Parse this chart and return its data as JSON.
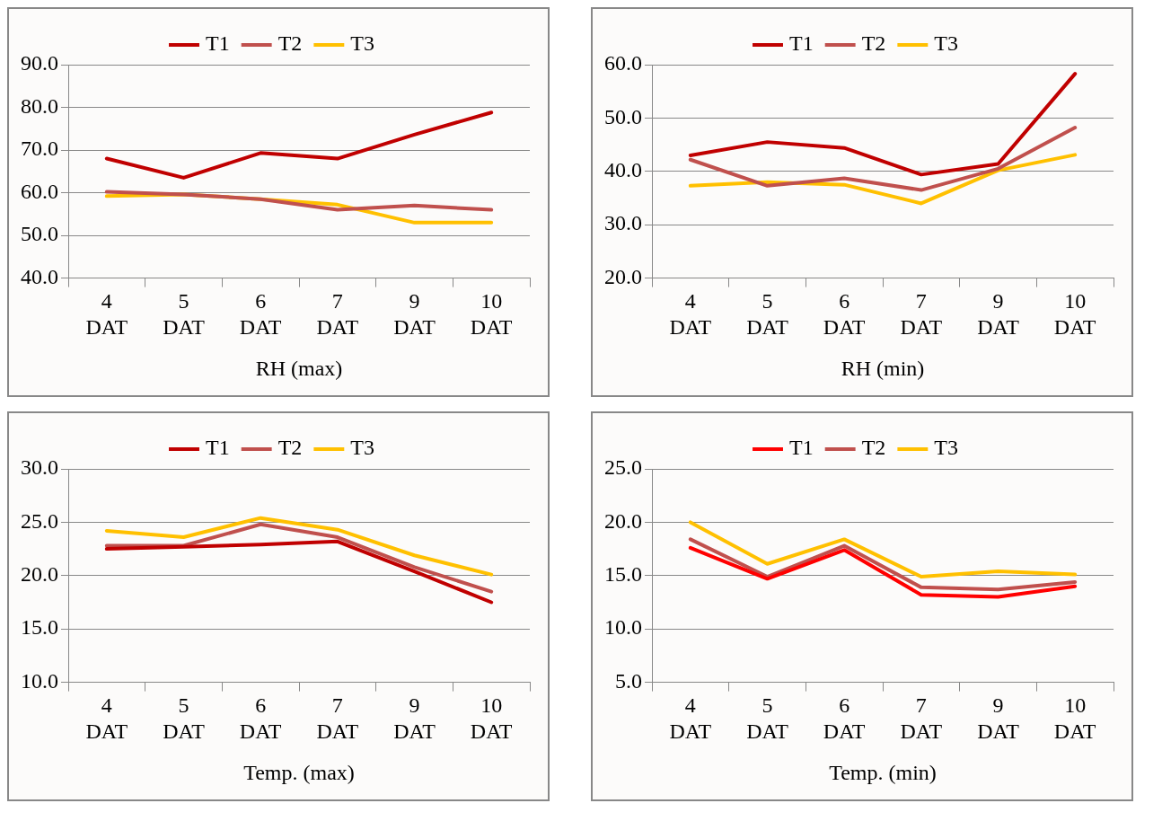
{
  "chart_data": [
    {
      "type": "line",
      "xlabel": "RH (max)",
      "categories": [
        "4 DAT",
        "5 DAT",
        "6 DAT",
        "7 DAT",
        "9 DAT",
        "10 DAT"
      ],
      "ylim": [
        40,
        90
      ],
      "yticks": [
        {
          "value": 40,
          "label": "40.0"
        },
        {
          "value": 50,
          "label": "50.0"
        },
        {
          "value": 60,
          "label": "60.0"
        },
        {
          "value": 70,
          "label": "70.0"
        },
        {
          "value": 80,
          "label": "80.0"
        },
        {
          "value": 90,
          "label": "90.0"
        }
      ],
      "grid": "y",
      "legend": "top",
      "marker": "none",
      "series": [
        {
          "name": "T1",
          "color": "#c00000",
          "values": [
            68,
            63.5,
            69.3,
            68,
            73.6,
            78.8
          ]
        },
        {
          "name": "T2",
          "color": "#c0504d",
          "values": [
            60.2,
            59.6,
            58.5,
            56,
            57,
            56
          ]
        },
        {
          "name": "T3",
          "color": "#ffc000",
          "values": [
            59.2,
            59.6,
            58.5,
            57.2,
            53,
            53
          ]
        }
      ]
    },
    {
      "type": "line",
      "xlabel": "RH (min)",
      "categories": [
        "4 DAT",
        "5 DAT",
        "6 DAT",
        "7 DAT",
        "9 DAT",
        "10 DAT"
      ],
      "ylim": [
        20,
        60
      ],
      "yticks": [
        {
          "value": 20,
          "label": "20.0"
        },
        {
          "value": 30,
          "label": "30.0"
        },
        {
          "value": 40,
          "label": "40.0"
        },
        {
          "value": 50,
          "label": "50.0"
        },
        {
          "value": 60,
          "label": "60.0"
        }
      ],
      "grid": "y",
      "legend": "top",
      "marker": "none",
      "series": [
        {
          "name": "T1",
          "color": "#c00000",
          "values": [
            43,
            45.5,
            44.4,
            39.4,
            41.4,
            58.3
          ]
        },
        {
          "name": "T2",
          "color": "#c0504d",
          "values": [
            42.2,
            37.3,
            38.7,
            36.5,
            40.5,
            48.2
          ]
        },
        {
          "name": "T3",
          "color": "#ffc000",
          "values": [
            37.3,
            38,
            37.5,
            34,
            40.2,
            43.1
          ]
        }
      ]
    },
    {
      "type": "line",
      "xlabel": "Temp. (max)",
      "categories": [
        "4 DAT",
        "5 DAT",
        "6 DAT",
        "7 DAT",
        "9 DAT",
        "10 DAT"
      ],
      "ylim": [
        10,
        30
      ],
      "yticks": [
        {
          "value": 10,
          "label": "10.0"
        },
        {
          "value": 15,
          "label": "15.0"
        },
        {
          "value": 20,
          "label": "20.0"
        },
        {
          "value": 25,
          "label": "25.0"
        },
        {
          "value": 30,
          "label": "30.0"
        }
      ],
      "grid": "y",
      "legend": "top",
      "marker": "none",
      "series": [
        {
          "name": "T1",
          "color": "#c00000",
          "values": [
            22.5,
            22.7,
            22.9,
            23.2,
            20.4,
            17.5
          ]
        },
        {
          "name": "T2",
          "color": "#c0504d",
          "values": [
            22.8,
            22.8,
            24.8,
            23.6,
            20.8,
            18.5
          ]
        },
        {
          "name": "T3",
          "color": "#ffc000",
          "values": [
            24.2,
            23.6,
            25.4,
            24.3,
            21.9,
            20.1
          ]
        }
      ]
    },
    {
      "type": "line",
      "xlabel": "Temp. (min)",
      "categories": [
        "4 DAT",
        "5 DAT",
        "6 DAT",
        "7 DAT",
        "9 DAT",
        "10 DAT"
      ],
      "ylim": [
        5,
        25
      ],
      "yticks": [
        {
          "value": 5,
          "label": "5.0"
        },
        {
          "value": 10,
          "label": "10.0"
        },
        {
          "value": 15,
          "label": "15.0"
        },
        {
          "value": 20,
          "label": "20.0"
        },
        {
          "value": 25,
          "label": "25.0"
        }
      ],
      "grid": "y",
      "legend": "top",
      "marker": "none",
      "series": [
        {
          "name": "T1",
          "color": "#ff0000",
          "values": [
            17.6,
            14.7,
            17.4,
            13.2,
            13,
            14
          ]
        },
        {
          "name": "T2",
          "color": "#c0504d",
          "values": [
            18.4,
            14.9,
            17.8,
            13.9,
            13.7,
            14.4
          ]
        },
        {
          "name": "T3",
          "color": "#ffc000",
          "values": [
            20,
            16.1,
            18.4,
            14.9,
            15.4,
            15.1
          ]
        }
      ]
    }
  ]
}
